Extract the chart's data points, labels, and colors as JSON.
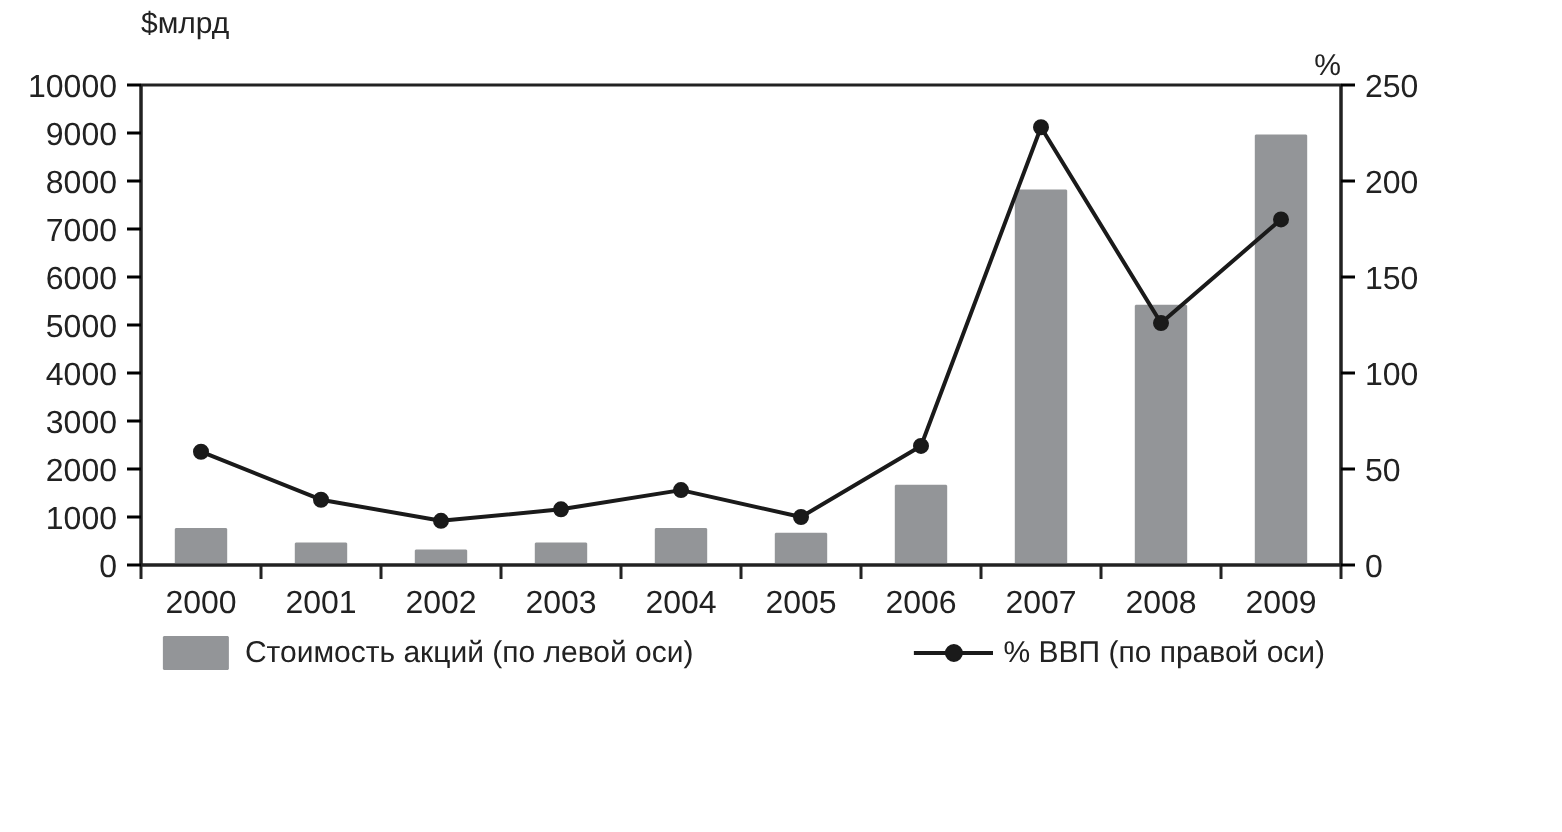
{
  "chart_data": {
    "type": "bar",
    "ylabel": "$млрд",
    "y2label": "%",
    "categories": [
      "2000",
      "2001",
      "2002",
      "2003",
      "2004",
      "2005",
      "2006",
      "2007",
      "2008",
      "2009"
    ],
    "series": [
      {
        "name": "Стоимость акций (по левой оси)",
        "color": "#939598",
        "values": [
          750,
          450,
          300,
          450,
          750,
          650,
          1650,
          7800,
          5400,
          8950
        ]
      },
      {
        "name": "% ВВП (по правой оси)",
        "type": "line",
        "axis": "y2",
        "color": "#1a1a1a",
        "marker": "circle",
        "values": [
          59,
          34,
          23,
          29,
          39,
          25,
          62,
          228,
          126,
          180
        ]
      }
    ],
    "ylim": [
      0,
      10000
    ],
    "yticks": [
      0,
      1000,
      2000,
      3000,
      4000,
      5000,
      6000,
      7000,
      8000,
      9000,
      10000
    ],
    "y2lim": [
      0,
      250
    ],
    "y2ticks": [
      0,
      50,
      100,
      150,
      200,
      250
    ],
    "grid": false,
    "legend": "bottom"
  }
}
